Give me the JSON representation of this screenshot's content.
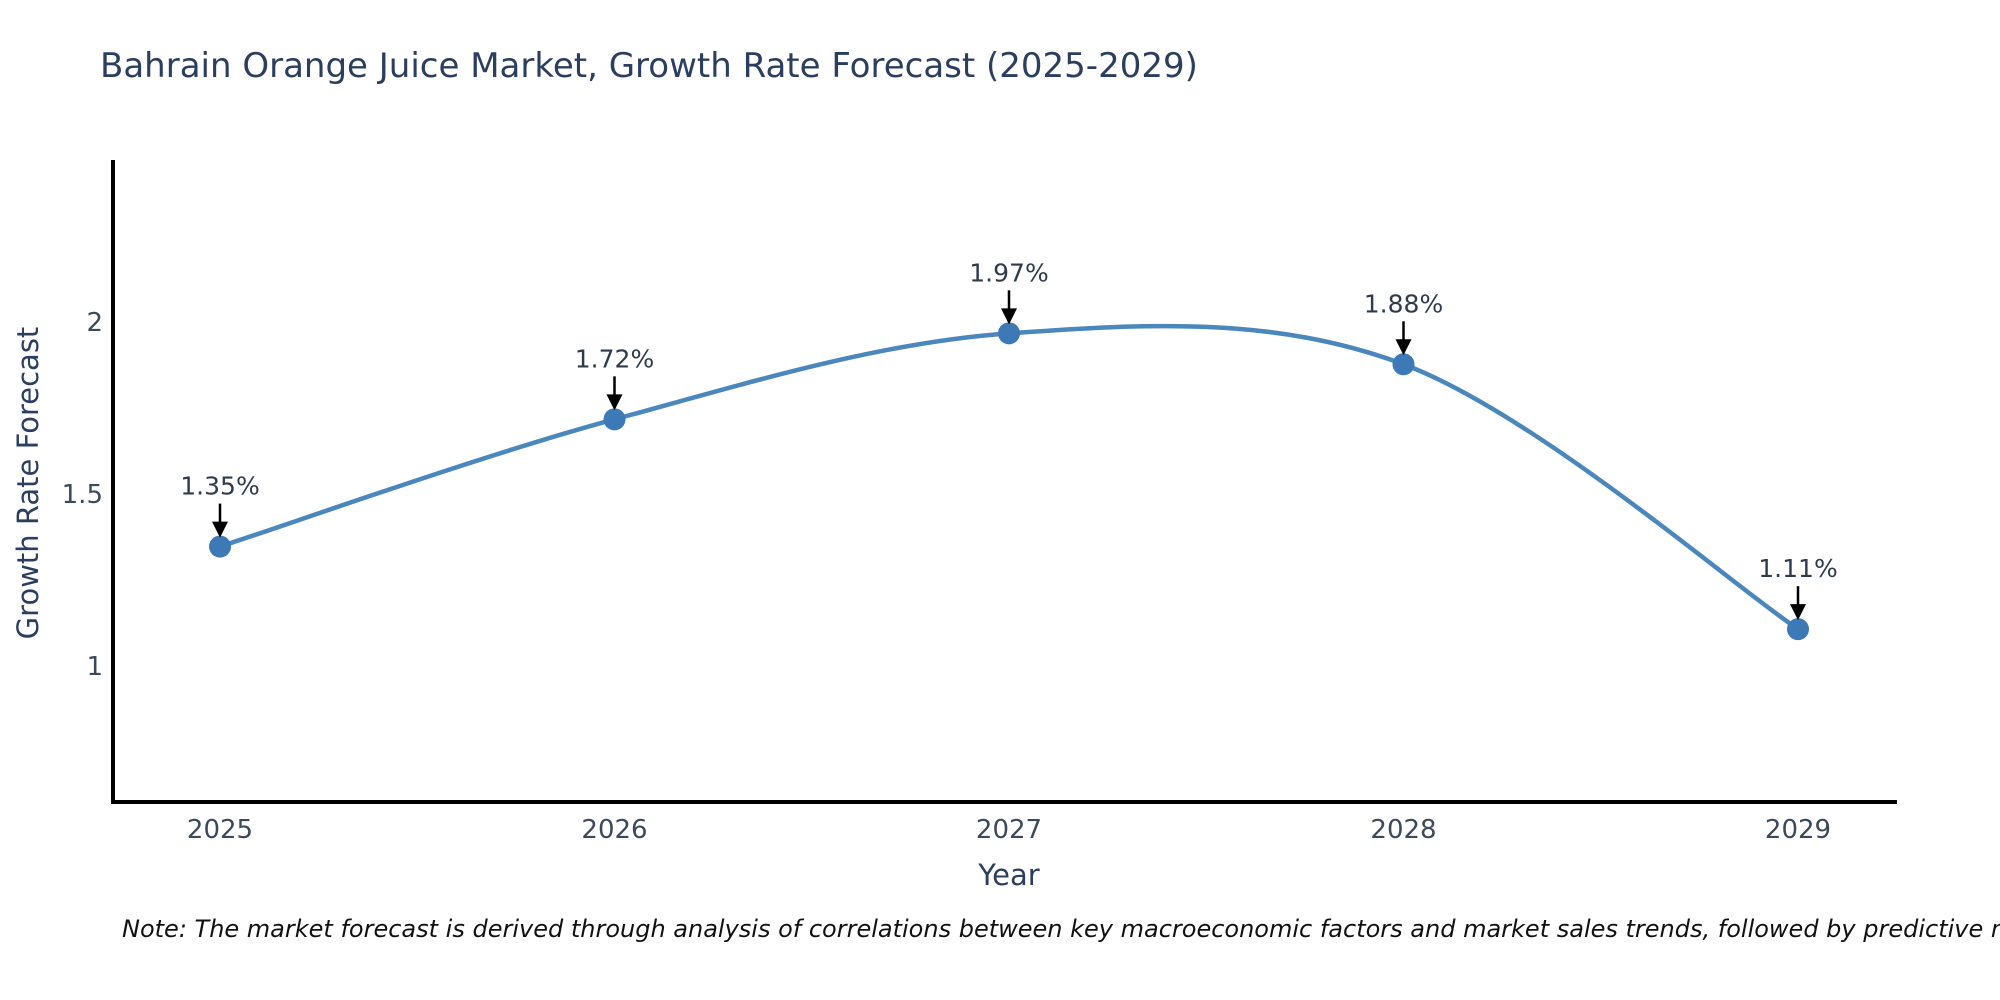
{
  "page": {
    "background_color": "#ffffff"
  },
  "chart": {
    "title": "Bahrain Orange Juice Market, Growth Rate Forecast (2025-2029)",
    "xlabel": "Year",
    "ylabel": "Growth Rate Forecast",
    "note": "Note: The market forecast is derived through analysis of correlations between key macroeconomic factors and market sales trends, followed by predictive modeling to project future sales."
  },
  "chart_data": {
    "type": "line",
    "title": "Bahrain Orange Juice Market, Growth Rate Forecast (2025-2029)",
    "xlabel": "Year",
    "ylabel": "Growth Rate Forecast",
    "x": [
      2025,
      2026,
      2027,
      2028,
      2029
    ],
    "series": [
      {
        "name": "Growth Rate Forecast",
        "values": [
          1.35,
          1.72,
          1.97,
          1.88,
          1.11
        ],
        "point_labels": [
          "1.35%",
          "1.72%",
          "1.97%",
          "1.88%",
          "1.11%"
        ]
      }
    ],
    "yticks": [
      1,
      1.5,
      2
    ],
    "ylim": [
      0.6,
      2.5
    ],
    "grid": false,
    "legend_position": "none",
    "smooth_line": true,
    "annotations_have_arrows": true,
    "colors": {
      "line": "#4a87bd",
      "marker": "#3c79b6",
      "axis": "#000000",
      "arrow": "#000000",
      "title_text": "#2a3f5f",
      "tick_text": "#3b4a5a",
      "annotation_text": "#2f3b4c"
    }
  }
}
